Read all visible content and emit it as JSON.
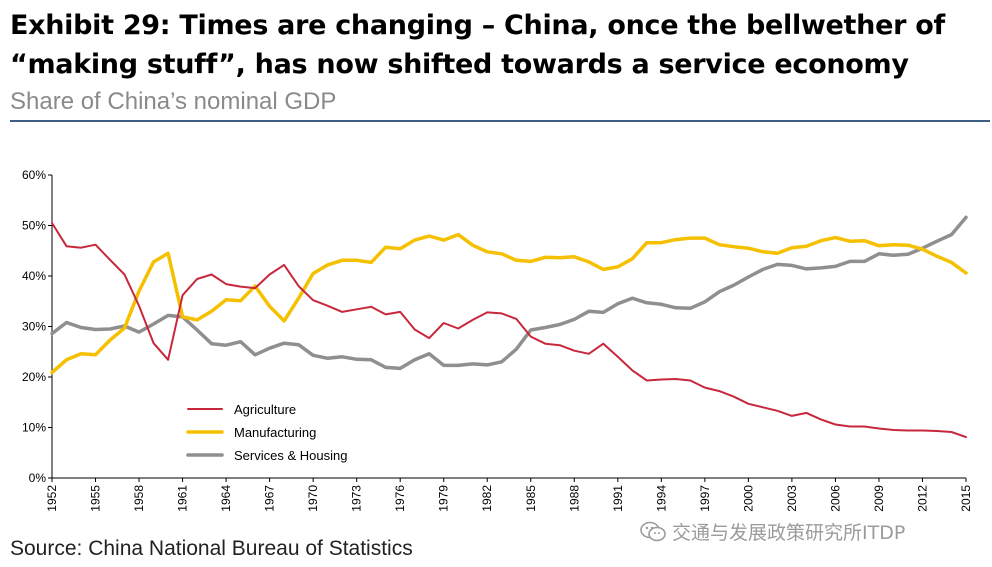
{
  "header": {
    "title": "Exhibit 29: Times are changing – China, once the bellwether of “making stuff”, has now shifted towards a service economy",
    "subtitle": "Share of China’s nominal GDP"
  },
  "footer": {
    "source": "Source: China National Bureau of Statistics",
    "watermark": "交通与发展政策研究所ITDP"
  },
  "chart_data": {
    "type": "line",
    "title": "Share of China’s nominal GDP",
    "xlabel": "",
    "ylabel": "",
    "ylim": [
      0,
      60
    ],
    "yticks": [
      0,
      10,
      20,
      30,
      40,
      50,
      60
    ],
    "ytick_labels": [
      "0%",
      "10%",
      "20%",
      "30%",
      "40%",
      "50%",
      "60%"
    ],
    "xlim": [
      1952,
      2015
    ],
    "xticks": [
      1952,
      1955,
      1958,
      1961,
      1964,
      1967,
      1970,
      1973,
      1976,
      1979,
      1982,
      1985,
      1988,
      1991,
      1994,
      1997,
      2000,
      2003,
      2006,
      2009,
      2012,
      2015
    ],
    "xtick_labels": [
      "1952",
      "1955",
      "1958",
      "1961",
      "1964",
      "1967",
      "1970",
      "1973",
      "1976",
      "1979",
      "1982",
      "1985",
      "1988",
      "1991",
      "1994",
      "1997",
      "2000",
      "2003",
      "2006",
      "2009",
      "2012",
      "2015"
    ],
    "grid": false,
    "legend_position": "lower-left",
    "x": [
      1952,
      1953,
      1954,
      1955,
      1956,
      1957,
      1958,
      1959,
      1960,
      1961,
      1962,
      1963,
      1964,
      1965,
      1966,
      1967,
      1968,
      1969,
      1970,
      1971,
      1972,
      1973,
      1974,
      1975,
      1976,
      1977,
      1978,
      1979,
      1980,
      1981,
      1982,
      1983,
      1984,
      1985,
      1986,
      1987,
      1988,
      1989,
      1990,
      1991,
      1992,
      1993,
      1994,
      1995,
      1996,
      1997,
      1998,
      1999,
      2000,
      2001,
      2002,
      2003,
      2004,
      2005,
      2006,
      2007,
      2008,
      2009,
      2010,
      2011,
      2012,
      2013,
      2014,
      2015
    ],
    "series": [
      {
        "name": "Agriculture",
        "color": "#c8283c",
        "width": 2,
        "values": [
          50.5,
          45.9,
          45.6,
          46.2,
          43.2,
          40.3,
          34.1,
          26.7,
          23.4,
          36.2,
          39.4,
          40.3,
          38.4,
          37.9,
          37.6,
          40.3,
          42.2,
          38.0,
          35.2,
          34.1,
          32.9,
          33.4,
          33.9,
          32.4,
          32.9,
          29.4,
          27.7,
          30.7,
          29.6,
          31.3,
          32.8,
          32.6,
          31.5,
          28.0,
          26.6,
          26.3,
          25.2,
          24.6,
          26.6,
          24.0,
          21.3,
          19.3,
          19.5,
          19.6,
          19.3,
          17.9,
          17.2,
          16.1,
          14.7,
          14.0,
          13.3,
          12.3,
          12.9,
          11.6,
          10.6,
          10.2,
          10.2,
          9.8,
          9.5,
          9.4,
          9.4,
          9.3,
          9.1,
          8.1
        ]
      },
      {
        "name": "Manufacturing",
        "color": "#f5c000",
        "width": 3.5,
        "values": [
          20.9,
          23.4,
          24.6,
          24.4,
          27.3,
          29.7,
          37.0,
          42.8,
          44.5,
          31.9,
          31.3,
          33.0,
          35.3,
          35.1,
          38.0,
          34.0,
          31.1,
          35.6,
          40.5,
          42.2,
          43.1,
          43.1,
          42.7,
          45.7,
          45.4,
          47.1,
          47.9,
          47.1,
          48.2,
          46.1,
          44.8,
          44.4,
          43.1,
          42.9,
          43.7,
          43.6,
          43.8,
          42.8,
          41.3,
          41.8,
          43.4,
          46.6,
          46.6,
          47.2,
          47.5,
          47.5,
          46.2,
          45.8,
          45.5,
          44.8,
          44.5,
          45.6,
          45.9,
          47.0,
          47.6,
          46.9,
          47.0,
          46.0,
          46.2,
          46.1,
          45.3,
          43.9,
          42.7,
          40.6
        ]
      },
      {
        "name": "Services & Housing",
        "color": "#8f8f8f",
        "width": 3.5,
        "values": [
          28.6,
          30.8,
          29.8,
          29.4,
          29.5,
          30.1,
          28.9,
          30.5,
          32.2,
          31.9,
          29.3,
          26.6,
          26.3,
          27.0,
          24.4,
          25.7,
          26.7,
          26.4,
          24.3,
          23.7,
          24.0,
          23.5,
          23.4,
          21.9,
          21.7,
          23.4,
          24.6,
          22.3,
          22.3,
          22.6,
          22.4,
          23.0,
          25.5,
          29.3,
          29.8,
          30.4,
          31.4,
          33.0,
          32.8,
          34.5,
          35.6,
          34.7,
          34.4,
          33.7,
          33.6,
          34.9,
          36.9,
          38.2,
          39.8,
          41.3,
          42.3,
          42.1,
          41.4,
          41.6,
          41.9,
          42.9,
          42.9,
          44.4,
          44.1,
          44.3,
          45.5,
          46.9,
          48.2,
          51.6
        ]
      }
    ]
  }
}
